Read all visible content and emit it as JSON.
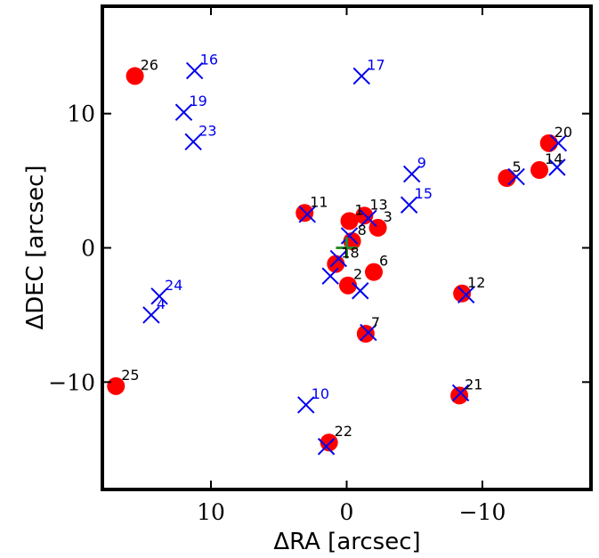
{
  "chart_data": {
    "type": "scatter",
    "title": "",
    "xlabel": "ΔRA [arcsec]",
    "ylabel": "ΔDEC [arcsec]",
    "xlim": [
      18,
      -18
    ],
    "ylim": [
      -18,
      18
    ],
    "x_reversed": true,
    "xticks": [
      {
        "value": 10,
        "label": "10"
      },
      {
        "value": 0,
        "label": "0"
      },
      {
        "value": -10,
        "label": "−10"
      }
    ],
    "yticks": [
      {
        "value": 10,
        "label": "10"
      },
      {
        "value": 0,
        "label": "0"
      },
      {
        "value": -10,
        "label": "−10"
      }
    ],
    "grid": false,
    "center_marker": {
      "x": 0,
      "y": 0,
      "symbol": "+",
      "color": "#2e8b2e"
    },
    "series": [
      {
        "marker": "circle",
        "color": "#ff0000",
        "label_color": "#000000",
        "points": [
          {
            "label": "1",
            "x": -0.2,
            "y": 2.0
          },
          {
            "label": "13",
            "x": -1.3,
            "y": 2.4
          },
          {
            "label": "3",
            "x": -2.3,
            "y": 1.5
          },
          {
            "label": "8",
            "x": -0.4,
            "y": 0.5
          },
          {
            "label": "18",
            "x": 0.8,
            "y": -1.2
          },
          {
            "label": "2",
            "x": -0.1,
            "y": -2.8
          },
          {
            "label": "6",
            "x": -2.0,
            "y": -1.8
          },
          {
            "label": "7",
            "x": -1.4,
            "y": -6.4
          },
          {
            "label": "11",
            "x": 3.1,
            "y": 2.6
          },
          {
            "label": "12",
            "x": -8.5,
            "y": -3.4
          },
          {
            "label": "5",
            "x": -11.8,
            "y": 5.2
          },
          {
            "label": "14",
            "x": -14.2,
            "y": 5.8
          },
          {
            "label": "20",
            "x": -14.9,
            "y": 7.8
          },
          {
            "label": "21",
            "x": -8.3,
            "y": -11.0
          },
          {
            "label": "22",
            "x": 1.3,
            "y": -14.5
          },
          {
            "label": "25",
            "x": 17.0,
            "y": -10.3
          },
          {
            "label": "26",
            "x": 15.6,
            "y": 12.8
          }
        ]
      },
      {
        "marker": "x",
        "color": "#0000ee",
        "label_color": "#0000ee",
        "points": [
          {
            "label": "16",
            "x": 11.2,
            "y": 13.2
          },
          {
            "label": "17",
            "x": -1.1,
            "y": 12.8
          },
          {
            "label": "19",
            "x": 12.0,
            "y": 10.1
          },
          {
            "label": "23",
            "x": 11.3,
            "y": 7.9
          },
          {
            "label": "9",
            "x": -4.8,
            "y": 5.5
          },
          {
            "label": "15",
            "x": -4.6,
            "y": 3.2
          },
          {
            "label": "24",
            "x": 13.8,
            "y": -3.6
          },
          {
            "label": "4",
            "x": 14.4,
            "y": -5.0
          },
          {
            "label": "10",
            "x": 3.0,
            "y": -11.7
          },
          {
            "label": "",
            "x": 2.9,
            "y": 2.5
          },
          {
            "label": "",
            "x": -1.6,
            "y": 2.2
          },
          {
            "label": "",
            "x": -0.2,
            "y": 0.9
          },
          {
            "label": "",
            "x": 0.6,
            "y": -0.8
          },
          {
            "label": "",
            "x": 1.2,
            "y": -2.1
          },
          {
            "label": "",
            "x": -1.0,
            "y": -3.2
          },
          {
            "label": "",
            "x": -1.6,
            "y": -6.3
          },
          {
            "label": "",
            "x": -8.8,
            "y": -3.5
          },
          {
            "label": "",
            "x": -12.5,
            "y": 5.3
          },
          {
            "label": "",
            "x": -15.5,
            "y": 6.0
          },
          {
            "label": "",
            "x": -15.6,
            "y": 7.8
          },
          {
            "label": "",
            "x": -8.4,
            "y": -10.8
          },
          {
            "label": "",
            "x": 1.5,
            "y": -14.8
          }
        ]
      }
    ]
  }
}
